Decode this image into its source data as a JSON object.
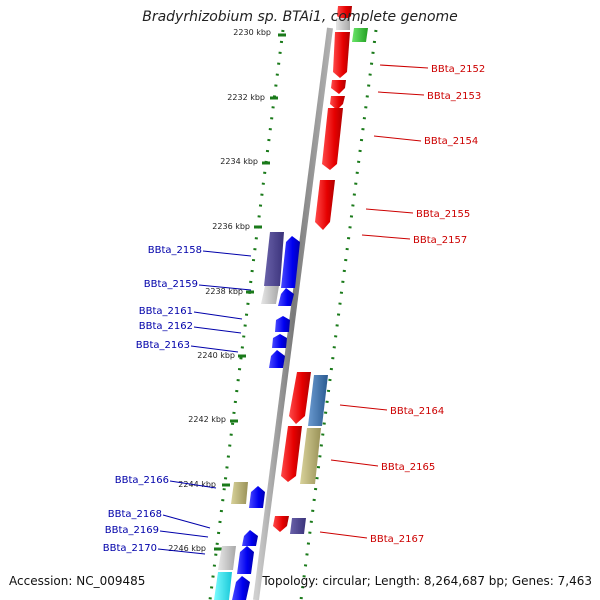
{
  "title": "Bradyrhizobium sp. BTAi1, complete genome",
  "footer": {
    "accession": "Accession: NC_009485",
    "summary": "Topology: circular; Length: 8,264,687 bp; Genes: 7,463"
  },
  "colors": {
    "forward_label": "#cc0000",
    "reverse_label": "#0000aa",
    "tick_dots": "#1a7a1a",
    "backbone": "#8a8a8a"
  },
  "ruler": [
    "2230 kbp",
    "2232 kbp",
    "2234 kbp",
    "2236 kbp",
    "2238 kbp",
    "2240 kbp",
    "2242 kbp",
    "2244 kbp",
    "2246 kbp"
  ],
  "genes_forward": [
    "BBta_2152",
    "BBta_2153",
    "BBta_2154",
    "BBta_2155",
    "BBta_2157",
    "BBta_2164",
    "BBta_2165",
    "BBta_2167"
  ],
  "genes_reverse": [
    "BBta_2158",
    "BBta_2159",
    "BBta_2161",
    "BBta_2162",
    "BBta_2163",
    "BBta_2166",
    "BBta_2168",
    "BBta_2169",
    "BBta_2170"
  ]
}
